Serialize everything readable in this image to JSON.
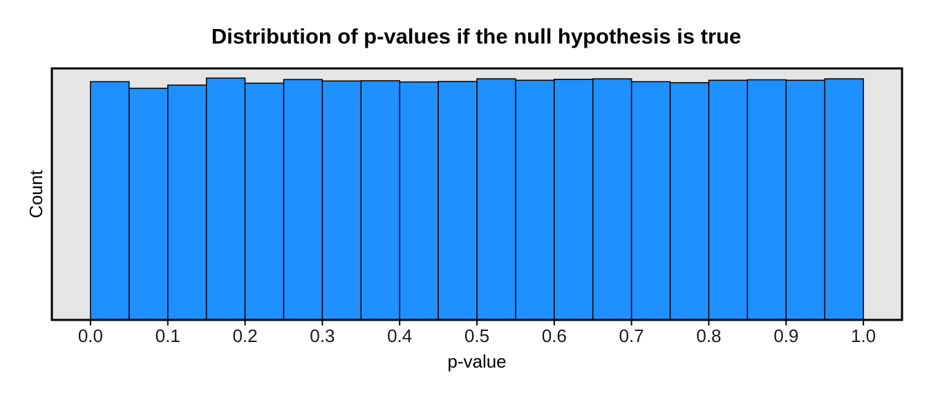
{
  "chart_data": {
    "type": "bar",
    "title": "Distribution of p-values if the null hypothesis is true",
    "xlabel": "p-value",
    "ylabel": "Count",
    "xlim": [
      -0.05,
      1.05
    ],
    "ylim": [
      0,
      1.04
    ],
    "x_ticks": [
      "0.0",
      "0.1",
      "0.2",
      "0.3",
      "0.4",
      "0.5",
      "0.6",
      "0.7",
      "0.8",
      "0.9",
      "1.0"
    ],
    "bin_edges": [
      0.0,
      0.05,
      0.1,
      0.15,
      0.2,
      0.25,
      0.3,
      0.35,
      0.4,
      0.45,
      0.5,
      0.55,
      0.6,
      0.65,
      0.7,
      0.75,
      0.8,
      0.85,
      0.9,
      0.95,
      1.0
    ],
    "values": [
      0.985,
      0.958,
      0.971,
      1.0,
      0.979,
      0.994,
      0.988,
      0.989,
      0.984,
      0.986,
      0.997,
      0.991,
      0.995,
      0.997,
      0.985,
      0.981,
      0.991,
      0.993,
      0.991,
      0.997
    ],
    "y_axis_ticks_shown": false,
    "grid": false,
    "colors": {
      "bar_fill": "#1E90FF",
      "bar_stroke": "#000000",
      "panel_background": "#E5E5E5",
      "panel_border": "#000000"
    }
  }
}
